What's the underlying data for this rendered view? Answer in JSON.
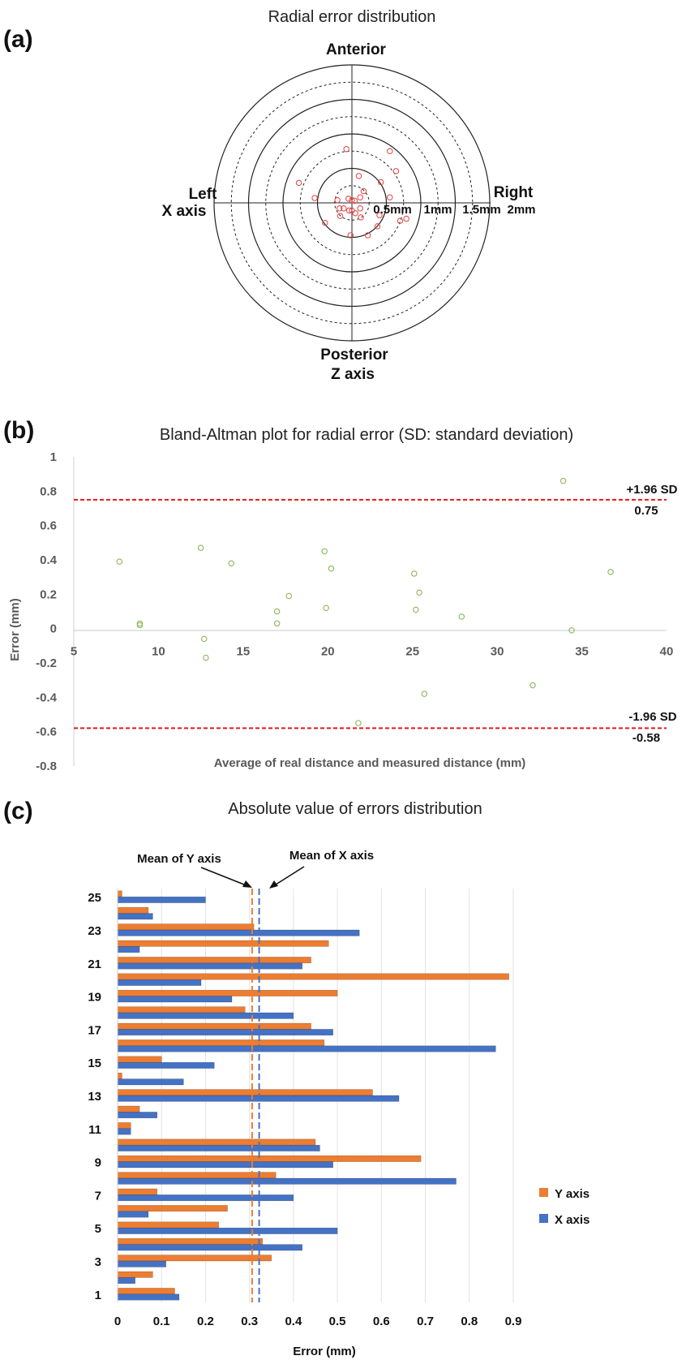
{
  "chart_data": [
    {
      "panel": "(a)",
      "type": "scatter",
      "subtype": "polar",
      "title": "Radial error distribution",
      "labels": {
        "top": "Anterior",
        "left": "Left",
        "left2": "X axis",
        "right": "Right",
        "bottom": "Posterior",
        "bottom2": "Z axis"
      },
      "ring_labels": [
        "0.5mm",
        "1mm",
        "1.5mm",
        "2mm"
      ],
      "rings_mm": [
        0.25,
        0.5,
        0.75,
        1.0,
        1.25,
        1.5,
        1.75,
        2.0
      ],
      "dashed_rings_mm": [
        0.25,
        0.75,
        1.25,
        1.75
      ],
      "marker_color": "#e05050",
      "points": [
        {
          "x": -0.08,
          "y": 0.78
        },
        {
          "x": 0.55,
          "y": 0.75
        },
        {
          "x": 0.64,
          "y": 0.46
        },
        {
          "x": -0.77,
          "y": 0.29
        },
        {
          "x": 0.1,
          "y": 0.39
        },
        {
          "x": 0.42,
          "y": 0.3
        },
        {
          "x": 0.17,
          "y": 0.17
        },
        {
          "x": -0.54,
          "y": 0.07
        },
        {
          "x": 0.55,
          "y": 0.08
        },
        {
          "x": 0.12,
          "y": 0.08
        },
        {
          "x": -0.05,
          "y": 0.06
        },
        {
          "x": -0.21,
          "y": 0.04
        },
        {
          "x": 0.0,
          "y": 0.04
        },
        {
          "x": 0.04,
          "y": 0.03
        },
        {
          "x": -0.18,
          "y": -0.08
        },
        {
          "x": -0.12,
          "y": -0.08
        },
        {
          "x": 0.12,
          "y": -0.08
        },
        {
          "x": -0.04,
          "y": -0.11
        },
        {
          "x": 0.0,
          "y": -0.11
        },
        {
          "x": 0.05,
          "y": -0.15
        },
        {
          "x": -0.17,
          "y": -0.19
        },
        {
          "x": 0.13,
          "y": -0.21
        },
        {
          "x": 0.4,
          "y": -0.18
        },
        {
          "x": 0.79,
          "y": -0.23
        },
        {
          "x": 0.7,
          "y": -0.26
        },
        {
          "x": -0.39,
          "y": -0.29
        },
        {
          "x": 0.37,
          "y": -0.34
        },
        {
          "x": -0.02,
          "y": -0.47
        },
        {
          "x": 0.23,
          "y": -0.47
        }
      ]
    },
    {
      "panel": "(b)",
      "type": "scatter",
      "title": "Bland-Altman plot for radial error (SD: standard deviation)",
      "xlabel": "Average of real distance and measured distance (mm)",
      "ylabel": "Error (mm)",
      "xlim": [
        5,
        40
      ],
      "ylim": [
        -0.8,
        1
      ],
      "xticks": [
        "5",
        "10",
        "15",
        "20",
        "25",
        "30",
        "35",
        "40"
      ],
      "yticks": [
        "1",
        "0.8",
        "0.6",
        "0.4",
        "0.2",
        "0",
        "-0.2",
        "-0.4",
        "-0.6",
        "-0.8"
      ],
      "marker_color": "#8cb65a",
      "limit_color": "#e01b1b",
      "upper_limit": {
        "value": 0.75,
        "label": "+1.96 SD",
        "value_label": "0.75"
      },
      "lower_limit": {
        "value": -0.58,
        "label": "-1.96 SD",
        "value_label": "-0.58"
      },
      "points": [
        {
          "x": 7.7,
          "y": 0.39
        },
        {
          "x": 8.9,
          "y": 0.03
        },
        {
          "x": 8.9,
          "y": 0.02
        },
        {
          "x": 12.5,
          "y": 0.47
        },
        {
          "x": 12.7,
          "y": -0.06
        },
        {
          "x": 12.8,
          "y": -0.17
        },
        {
          "x": 14.3,
          "y": 0.38
        },
        {
          "x": 17.0,
          "y": 0.1
        },
        {
          "x": 17.0,
          "y": 0.03
        },
        {
          "x": 17.7,
          "y": 0.19
        },
        {
          "x": 19.8,
          "y": 0.45
        },
        {
          "x": 19.9,
          "y": 0.12
        },
        {
          "x": 20.2,
          "y": 0.35
        },
        {
          "x": 21.8,
          "y": -0.55
        },
        {
          "x": 25.1,
          "y": 0.32
        },
        {
          "x": 25.2,
          "y": 0.11
        },
        {
          "x": 25.4,
          "y": 0.21
        },
        {
          "x": 25.7,
          "y": -0.38
        },
        {
          "x": 27.9,
          "y": 0.07
        },
        {
          "x": 32.1,
          "y": -0.33
        },
        {
          "x": 33.9,
          "y": 0.86
        },
        {
          "x": 34.4,
          "y": -0.01
        },
        {
          "x": 36.7,
          "y": 0.33
        }
      ]
    },
    {
      "panel": "(c)",
      "type": "bar",
      "orientation": "horizontal",
      "title": "Absolute value of errors distribution",
      "xlabel": "Error (mm)",
      "xlim": [
        0,
        0.9
      ],
      "xticks": [
        "0",
        "0.1",
        "0.2",
        "0.3",
        "0.4",
        "0.5",
        "0.6",
        "0.7",
        "0.8",
        "0.9"
      ],
      "categories": [
        "1",
        "2",
        "3",
        "4",
        "5",
        "6",
        "7",
        "8",
        "9",
        "10",
        "11",
        "12",
        "13",
        "14",
        "15",
        "16",
        "17",
        "18",
        "19",
        "20",
        "21",
        "22",
        "23",
        "24",
        "25"
      ],
      "category_labels_shown": [
        "1",
        "3",
        "5",
        "7",
        "9",
        "11",
        "13",
        "15",
        "17",
        "19",
        "21",
        "23",
        "25"
      ],
      "series": [
        {
          "name": "Y axis",
          "color": "#ed7d31",
          "values": [
            0.13,
            0.08,
            0.35,
            0.33,
            0.23,
            0.25,
            0.09,
            0.36,
            0.69,
            0.45,
            0.03,
            0.05,
            0.58,
            0.01,
            0.1,
            0.47,
            0.44,
            0.29,
            0.5,
            0.89,
            0.44,
            0.48,
            0.31,
            0.07,
            0.01
          ]
        },
        {
          "name": "X axis",
          "color": "#4472c4",
          "values": [
            0.14,
            0.04,
            0.11,
            0.42,
            0.5,
            0.07,
            0.4,
            0.77,
            0.49,
            0.46,
            0.03,
            0.09,
            0.64,
            0.15,
            0.22,
            0.86,
            0.49,
            0.4,
            0.26,
            0.19,
            0.42,
            0.05,
            0.55,
            0.08,
            0.2
          ]
        }
      ],
      "mean_lines": [
        {
          "label": "Mean of Y axis",
          "value": 0.306,
          "color": "#ed7d31"
        },
        {
          "label": "Mean of X axis",
          "value": 0.322,
          "color": "#4472c4"
        }
      ],
      "legend_position": "right"
    }
  ]
}
